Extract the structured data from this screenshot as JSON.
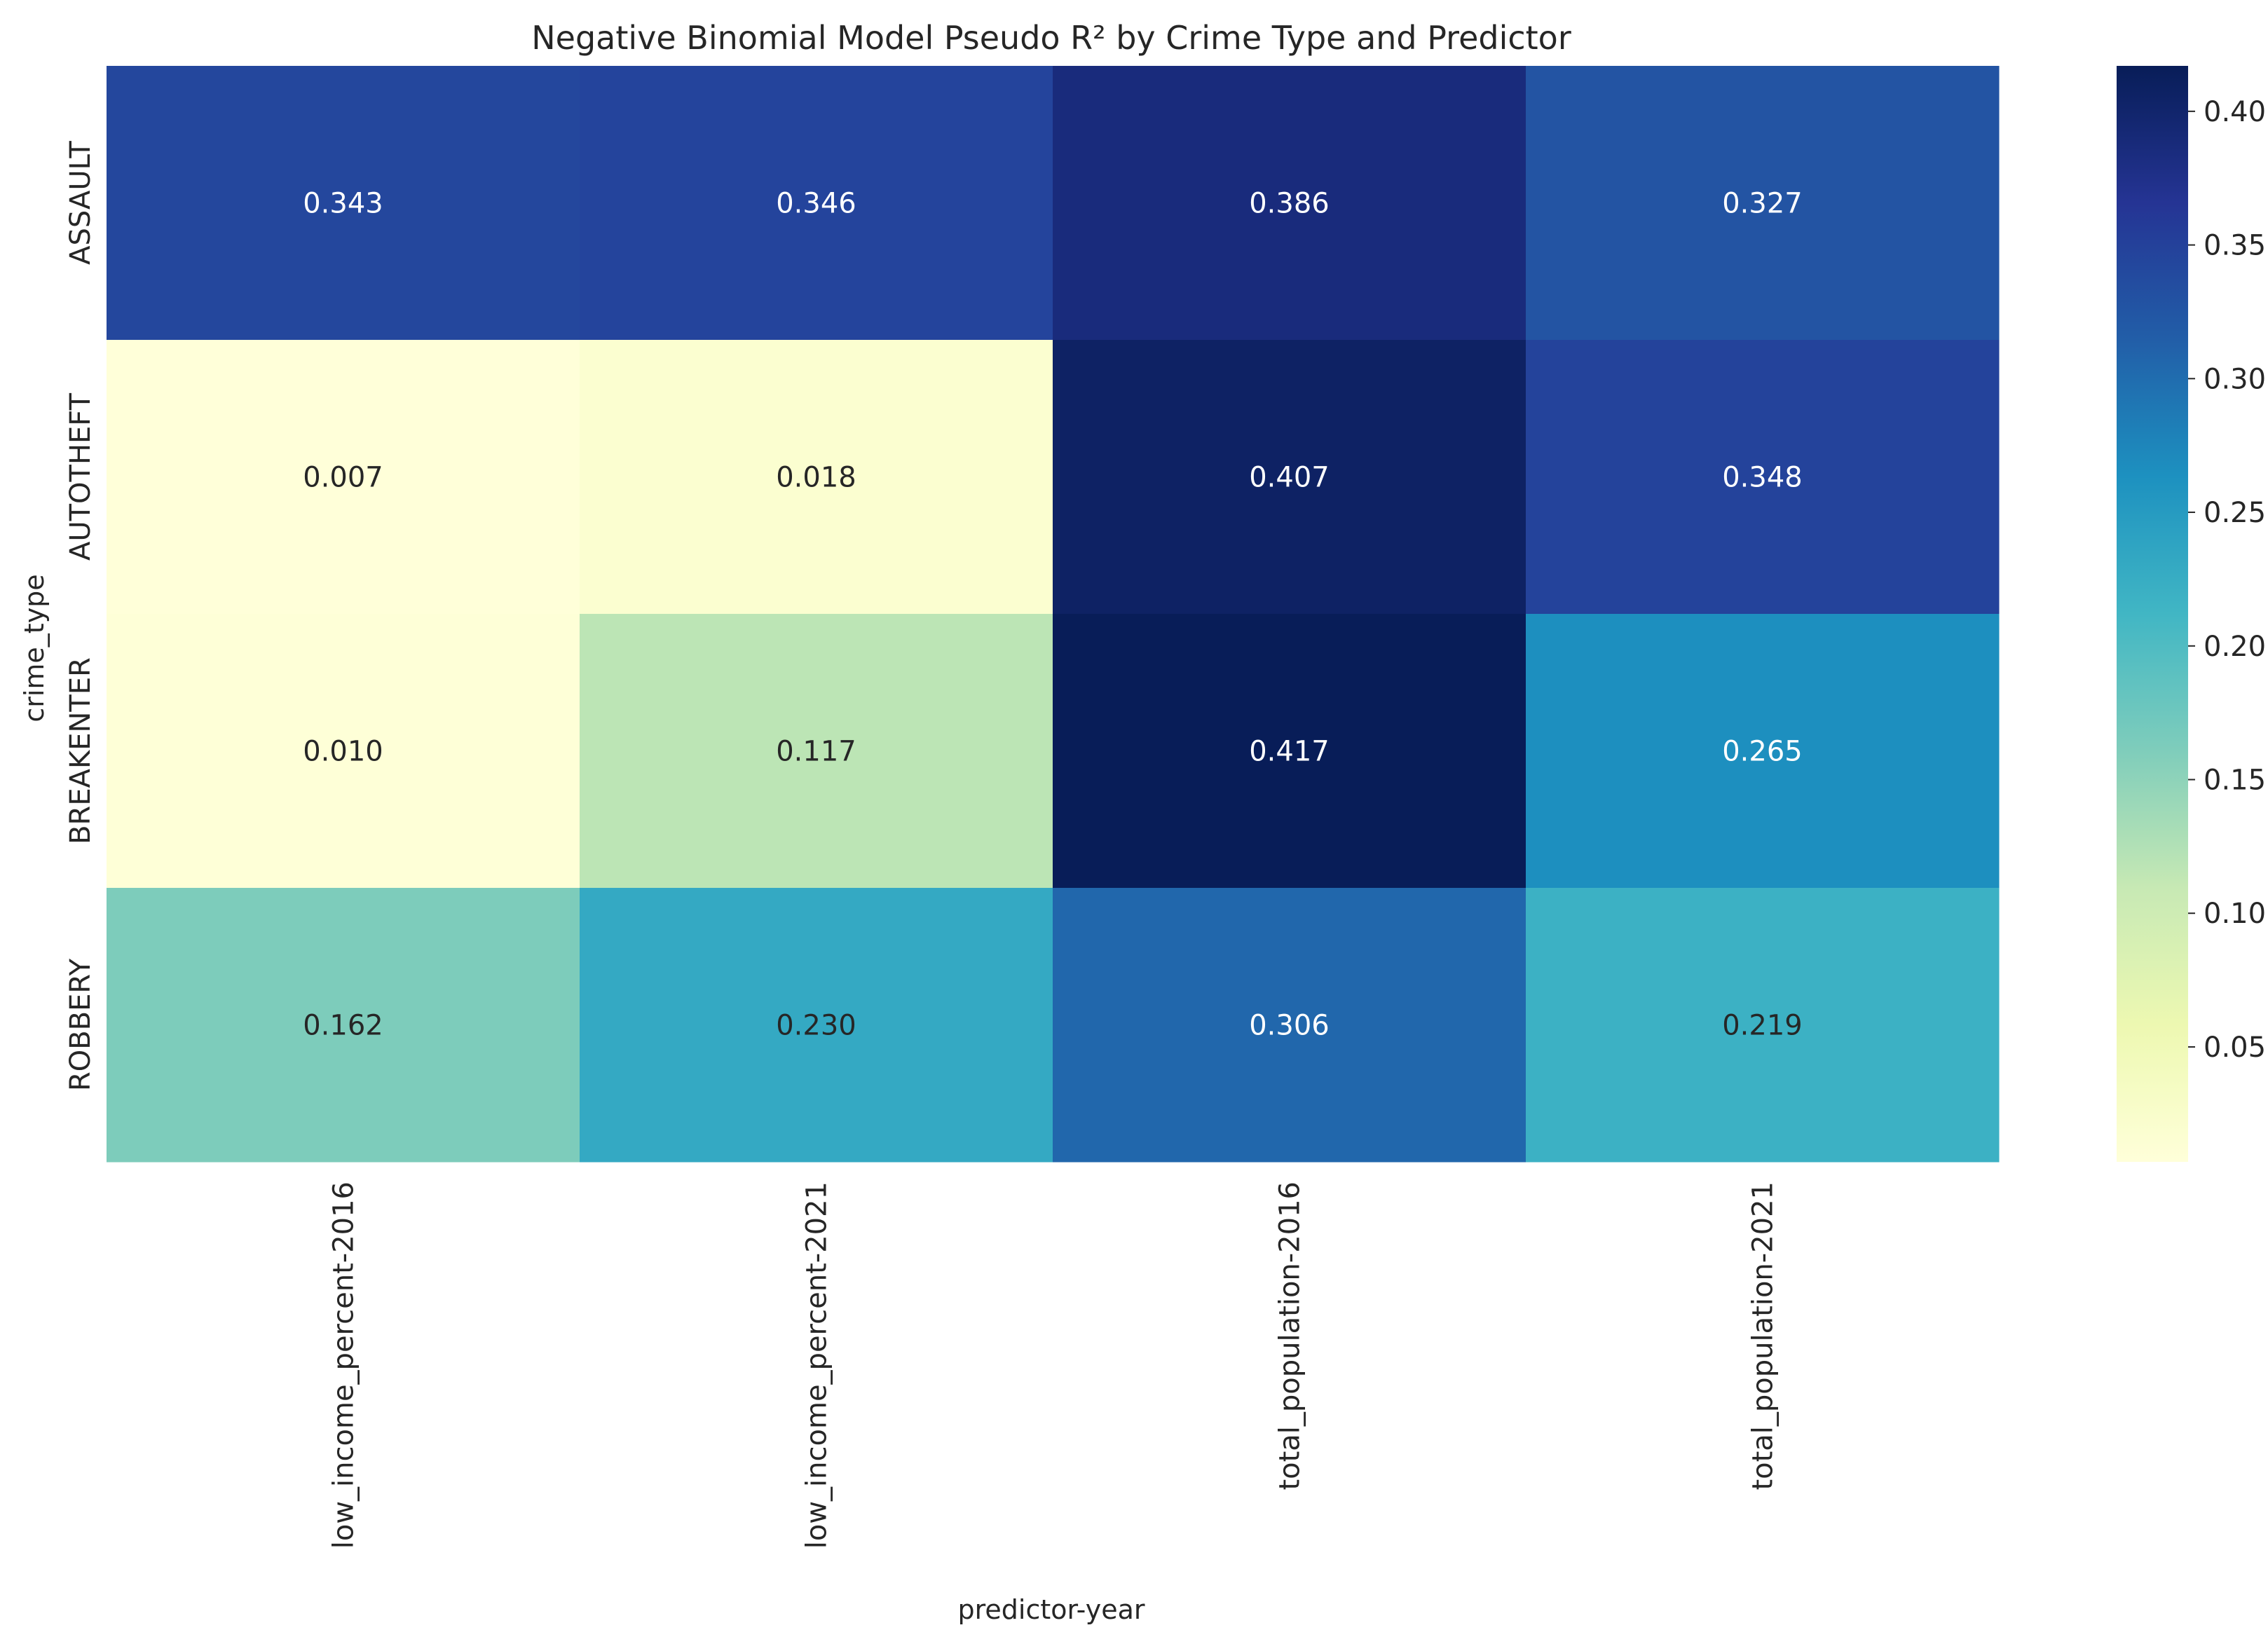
{
  "chart_data": {
    "type": "heatmap",
    "title": "Negative Binomial Model Pseudo R² by Crime Type and Predictor",
    "xlabel": "predictor-year",
    "ylabel": "crime_type",
    "columns": [
      "low_income_percent-2016",
      "low_income_percent-2021",
      "total_population-2016",
      "total_population-2021"
    ],
    "rows": [
      "ASSAULT",
      "AUTOTHEFT",
      "BREAKENTER",
      "ROBBERY"
    ],
    "values": [
      [
        0.343,
        0.346,
        0.386,
        0.327
      ],
      [
        0.007,
        0.018,
        0.407,
        0.348
      ],
      [
        0.01,
        0.117,
        0.417,
        0.265
      ],
      [
        0.162,
        0.23,
        0.306,
        0.219
      ]
    ],
    "value_format": "0.000",
    "colormap": "YlGnBu",
    "colorbar": {
      "range": [
        0.007,
        0.417
      ],
      "ticks": [
        0.05,
        0.1,
        0.15,
        0.2,
        0.25,
        0.3,
        0.35,
        0.4
      ],
      "tick_labels": [
        "0.05",
        "0.10",
        "0.15",
        "0.20",
        "0.25",
        "0.30",
        "0.35",
        "0.40"
      ]
    },
    "grid": false,
    "legend": "colorbar-right"
  }
}
